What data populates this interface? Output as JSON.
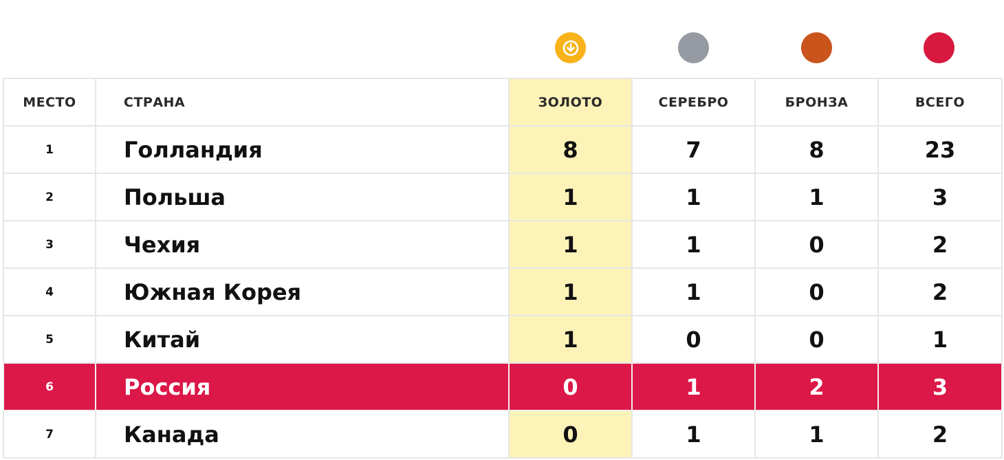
{
  "colors": {
    "gold": "#f8b31a",
    "silver": "#969ba3",
    "bronze": "#c9541c",
    "total": "#d7193f",
    "gold_column_bg": "#fdf2b8",
    "highlight_row": "#dc1848"
  },
  "icons": {
    "gold": "arrow-down-circle-icon",
    "silver": "silver-medal-icon",
    "bronze": "bronze-medal-icon",
    "total": "total-medal-icon"
  },
  "headers": {
    "place": "МЕСТО",
    "country": "СТРАНА",
    "gold": "ЗОЛОТО",
    "silver": "СЕРЕБРО",
    "bronze": "БРОНЗА",
    "total": "ВСЕГО"
  },
  "rows": [
    {
      "place": "1",
      "country": "Голландия",
      "gold": "8",
      "silver": "7",
      "bronze": "8",
      "total": "23",
      "highlight": false
    },
    {
      "place": "2",
      "country": "Польша",
      "gold": "1",
      "silver": "1",
      "bronze": "1",
      "total": "3",
      "highlight": false
    },
    {
      "place": "3",
      "country": "Чехия",
      "gold": "1",
      "silver": "1",
      "bronze": "0",
      "total": "2",
      "highlight": false
    },
    {
      "place": "4",
      "country": "Южная Корея",
      "gold": "1",
      "silver": "1",
      "bronze": "0",
      "total": "2",
      "highlight": false
    },
    {
      "place": "5",
      "country": "Китай",
      "gold": "1",
      "silver": "0",
      "bronze": "0",
      "total": "1",
      "highlight": false
    },
    {
      "place": "6",
      "country": "Россия",
      "gold": "0",
      "silver": "1",
      "bronze": "2",
      "total": "3",
      "highlight": true
    },
    {
      "place": "7",
      "country": "Канада",
      "gold": "0",
      "silver": "1",
      "bronze": "1",
      "total": "2",
      "highlight": false
    }
  ]
}
